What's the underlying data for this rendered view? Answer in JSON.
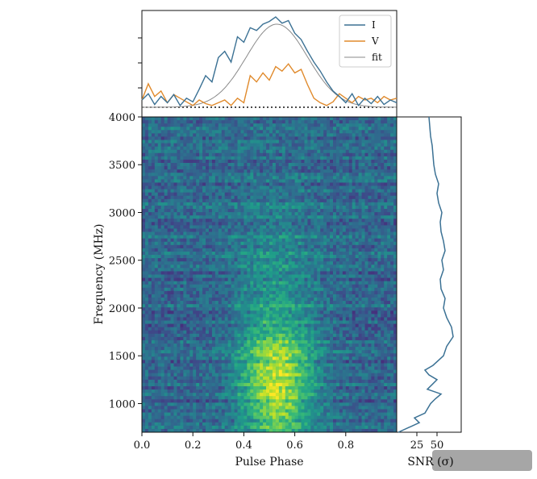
{
  "chart_data": [
    {
      "panel": "pulse-profile",
      "type": "line",
      "x_range": [
        0.0,
        1.0
      ],
      "series": [
        {
          "name": "I",
          "color": "#3b7194",
          "x": [
            0.0,
            0.025,
            0.05,
            0.075,
            0.1,
            0.125,
            0.15,
            0.175,
            0.2,
            0.225,
            0.25,
            0.275,
            0.3,
            0.325,
            0.35,
            0.375,
            0.4,
            0.425,
            0.45,
            0.475,
            0.5,
            0.525,
            0.55,
            0.575,
            0.6,
            0.625,
            0.65,
            0.675,
            0.7,
            0.725,
            0.75,
            0.775,
            0.8,
            0.825,
            0.85,
            0.875,
            0.9,
            0.925,
            0.95,
            0.975,
            1.0
          ],
          "y": [
            0.08,
            0.15,
            0.03,
            0.12,
            0.05,
            0.14,
            0.02,
            0.1,
            0.06,
            0.2,
            0.35,
            0.28,
            0.55,
            0.62,
            0.5,
            0.78,
            0.72,
            0.88,
            0.85,
            0.92,
            0.95,
            1.0,
            0.93,
            0.96,
            0.82,
            0.75,
            0.62,
            0.5,
            0.4,
            0.28,
            0.18,
            0.12,
            0.05,
            0.15,
            0.02,
            0.1,
            0.04,
            0.12,
            0.03,
            0.08,
            0.05
          ]
        },
        {
          "name": "V",
          "color": "#e08a2c",
          "x": [
            0.0,
            0.025,
            0.05,
            0.075,
            0.1,
            0.125,
            0.15,
            0.175,
            0.2,
            0.225,
            0.25,
            0.275,
            0.3,
            0.325,
            0.35,
            0.375,
            0.4,
            0.425,
            0.45,
            0.475,
            0.5,
            0.525,
            0.55,
            0.575,
            0.6,
            0.625,
            0.65,
            0.675,
            0.7,
            0.725,
            0.75,
            0.775,
            0.8,
            0.825,
            0.85,
            0.875,
            0.9,
            0.925,
            0.95,
            0.975,
            1.0
          ],
          "y": [
            0.08,
            0.26,
            0.12,
            0.18,
            0.05,
            0.14,
            0.1,
            0.06,
            0.02,
            0.08,
            0.04,
            0.02,
            0.05,
            0.08,
            0.02,
            0.1,
            0.05,
            0.35,
            0.28,
            0.38,
            0.3,
            0.45,
            0.4,
            0.48,
            0.38,
            0.42,
            0.25,
            0.1,
            0.05,
            0.02,
            0.06,
            0.15,
            0.1,
            0.05,
            0.12,
            0.08,
            0.1,
            0.05,
            0.12,
            0.08,
            0.1
          ]
        },
        {
          "name": "fit",
          "color": "#8a8a8a",
          "type": "gaussian",
          "amplitude": 0.92,
          "center": 0.53,
          "sigma": 0.12
        }
      ],
      "baseline": 0.0,
      "legend_position": "top-right"
    },
    {
      "panel": "dynamic-spectrum",
      "type": "heatmap",
      "xlabel": "Pulse Phase",
      "ylabel": "Frequency (MHz)",
      "x_range": [
        0.0,
        1.0
      ],
      "y_range": [
        700,
        4000
      ],
      "x_ticks": [
        "0.0",
        "0.2",
        "0.4",
        "0.6",
        "0.8"
      ],
      "y_ticks": [
        "1000",
        "1500",
        "2000",
        "2500",
        "3000",
        "3500",
        "4000"
      ],
      "colormap": "viridis",
      "grid": false
    },
    {
      "panel": "snr-spectrum",
      "type": "line",
      "xlabel": "SNR (σ)",
      "x_ticks": [
        "25",
        "50"
      ],
      "x_range": [
        0,
        80
      ],
      "color": "#3b7194",
      "y": [
        700,
        750,
        800,
        850,
        900,
        1000,
        1050,
        1100,
        1150,
        1200,
        1250,
        1300,
        1350,
        1400,
        1500,
        1600,
        1700,
        1800,
        1900,
        2000,
        2100,
        2200,
        2300,
        2400,
        2500,
        2600,
        2700,
        2800,
        2900,
        3000,
        3100,
        3200,
        3300,
        3400,
        3500,
        3600,
        3700,
        3800,
        3900,
        4000
      ],
      "x": [
        2,
        15,
        28,
        22,
        35,
        42,
        48,
        55,
        38,
        44,
        50,
        40,
        35,
        45,
        58,
        62,
        70,
        68,
        62,
        58,
        60,
        55,
        54,
        58,
        56,
        60,
        58,
        55,
        54,
        56,
        52,
        50,
        52,
        48,
        46,
        45,
        44,
        42,
        41,
        40
      ]
    }
  ]
}
